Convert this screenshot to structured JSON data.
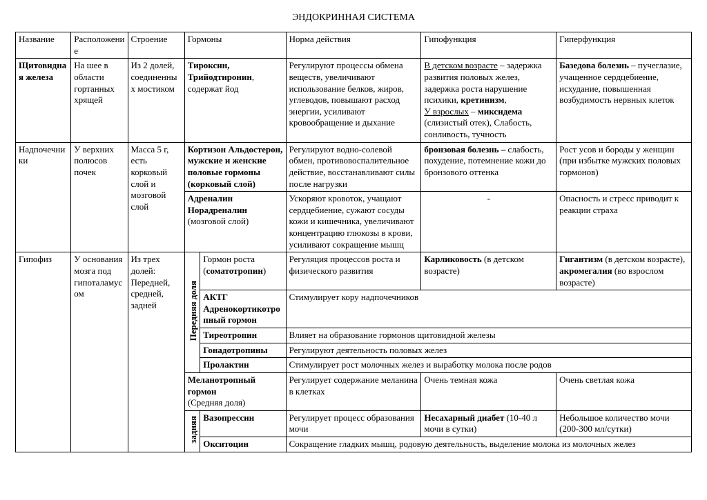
{
  "title": "ЭНДОКРИННАЯ СИСТЕМА",
  "head": {
    "c1": "Название",
    "c2": "Расположение",
    "c3": "Строение",
    "c4": "Гормоны",
    "c5": "Норма действия",
    "c6": "Гипофункция",
    "c7": "Гиперфункция"
  },
  "thyroid": {
    "name": "Щитовидная железа",
    "loc": "На шее в области гортанных хрящей",
    "struct": "Из 2 долей, соединенных мостиком",
    "horm_html": "<b>Тироксин, Трийодтиронин</b>, содержат йод",
    "norm": "Регулируют процессы обмена веществ, увеличивают использование белков, жиров, углеводов, повышают расход энергии, усиливают кровообращение и дыхание",
    "hypo_html": "<u>В детском возрасте</u> – задержка развития половых желез, задержка роста нарушение психики, <b>кретинизм</b>,<br><u>У взрослых</u> – <b>миксидема</b> (слизистый отек), Слабость, сонливость, тучность",
    "hyper_html": "<b>Базедова болезнь</b> – пучеглазие, учащенное сердцебиение, исхудание, повышенная возбудимость нервных клеток"
  },
  "adrenal": {
    "name": "Надпочечники",
    "loc": "У верхних полюсов почек",
    "struct": "Масса 5 г, есть корковый слой и мозговой слой",
    "cortex_horm_html": "<b>Кортизон Альдостерон, мужские и женские половые гормоны (корковый слой)</b>",
    "cortex_norm": "Регулируют водно-солевой обмен, противовоспалительное действие, восстанавливают силы после нагрузки",
    "cortex_hypo_html": "<b>бронзовая болезнь –</b> слабость, похудение, потемнение кожи до бронзового оттенка",
    "cortex_hyper": "Рост усов и бороды у женщин (при избытке мужских половых гормонов)",
    "medulla_horm_html": "<b>Адреналин Норадреналин</b> (мозговой слой)",
    "medulla_norm": "Ускоряют кровоток, учащают сердцебиение,  сужают сосуды кожи и кишечника, увеличивают концентрацию глюкозы в крови, усиливают сокращение мышц",
    "medulla_hypo": "-",
    "medulla_hyper": "Опасность и стресс приводит к реакции страха"
  },
  "pituitary": {
    "name": "Гипофиз",
    "loc": "У основания мозга под гипоталамусом",
    "struct": "Из трех долей: Передней, средней, задней",
    "anterior_label": "Передняя доля",
    "gh_horm_html": "Гормон роста (<b>соматотропин</b>)",
    "gh_norm": "Регуляция процессов роста и физического развития",
    "gh_hypo_html": "<b>Карликовость</b> (в детском возрасте)",
    "gh_hyper_html": "<b>Гигантизм</b> (в детском возрасте), <b>акромегалия</b> (во взрослом возрасте)",
    "acth_horm_html": "<b>АКТГ Адренокортикотропный гормон</b>",
    "acth_merged": "Стимулирует кору надпочечников",
    "tsh_horm_html": "<b>Тиреотропин</b>",
    "tsh_merged": "Влияет на образование гормонов щитовидной железы",
    "gon_horm_html": "<b>Гонадотропины</b>",
    "gon_merged": "Регулируют деятельность половых желез",
    "prl_horm_html": "<b>Пролактин</b>",
    "prl_merged": "Стимулирует рост молочных желез и выработку молока после родов",
    "mid_horm_html": "<b>Меланотропный гормон</b><br>(Средняя доля)",
    "mid_norm": "Регулирует содержание меланина в клетках",
    "mid_hypo": "Очень темная кожа",
    "mid_hyper": "Очень светлая кожа",
    "posterior_label": "задняя",
    "vaso_horm_html": "<b>Вазопрессин</b>",
    "vaso_norm": "Регулирует процесс образования мочи",
    "vaso_hypo_html": "<b>Несахарный диабет</b> (10-40 л мочи в сутки)",
    "vaso_hyper": "Небольшое количество мочи (200-300 мл/сутки)",
    "oxy_horm_html": "<b>Окситоцин</b>",
    "oxy_merged": "Сокращение гладких мышц, родовую деятельность, выделение молока из молочных желез"
  }
}
